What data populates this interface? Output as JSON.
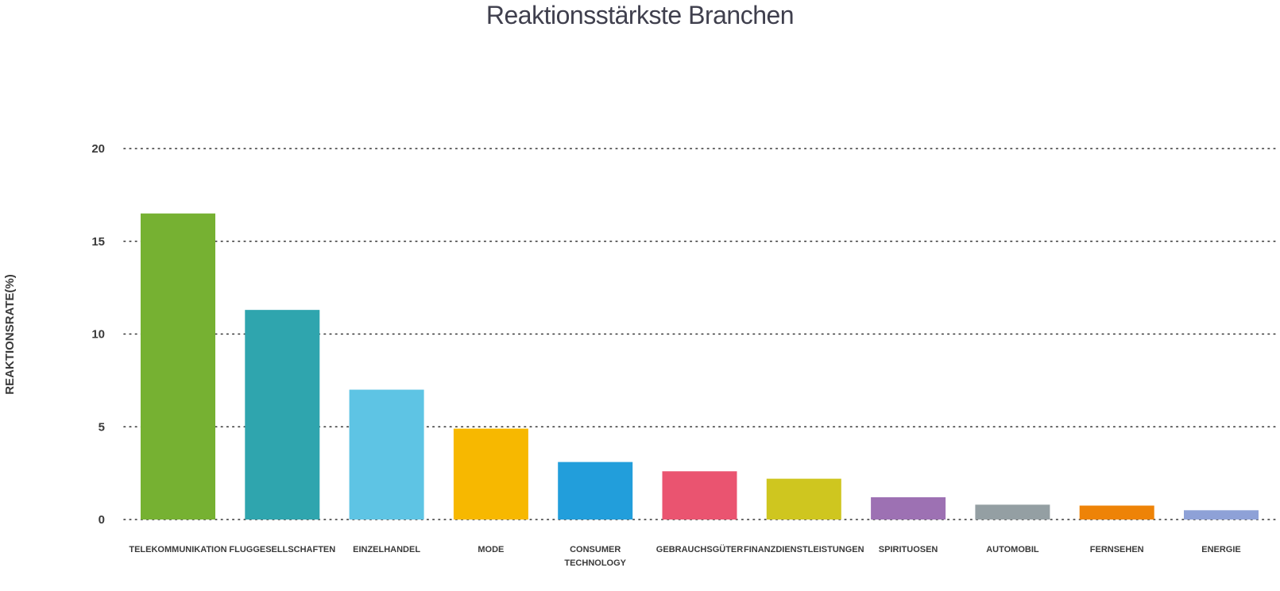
{
  "chart_data": {
    "type": "bar",
    "title": "Reaktionsstärkste Branchen",
    "xlabel": "",
    "ylabel": "REAKTIONSRATE(%)",
    "ylim": [
      0,
      20
    ],
    "yticks": [
      0,
      5,
      10,
      15,
      20
    ],
    "grid": true,
    "legend": "none",
    "categories": [
      "TELEKOMMUNIKATION",
      "FLUGGESELLSCHAFTEN",
      "EINZELHANDEL",
      "MODE",
      "CONSUMER TECHNOLOGY",
      "GEBRAUCHSGÜTER",
      "FINANZDIENSTLEISTUNGEN",
      "SPIRITUOSEN",
      "AUTOMOBIL",
      "FERNSEHEN",
      "ENERGIE"
    ],
    "values": [
      16.5,
      11.3,
      7.0,
      4.9,
      3.1,
      2.6,
      2.2,
      1.2,
      0.8,
      0.75,
      0.5
    ],
    "colors": [
      "#76b132",
      "#2fa5ae",
      "#5ec4e4",
      "#f7b800",
      "#229edb",
      "#ea5470",
      "#cfc61f",
      "#9d71b3",
      "#949fa3",
      "#ee8307",
      "#8ea1d7"
    ]
  }
}
